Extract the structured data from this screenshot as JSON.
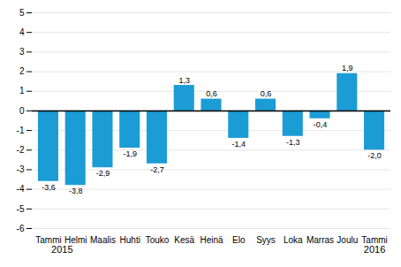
{
  "chart_data": {
    "type": "bar",
    "categories": [
      "Tammi",
      "Helmi",
      "Maalis",
      "Huhti",
      "Touko",
      "Kesä",
      "Heinä",
      "Elo",
      "Syys",
      "Loka",
      "Marras",
      "Joulu",
      "Tammi"
    ],
    "values": [
      -3.6,
      -3.8,
      -2.9,
      -1.9,
      -2.7,
      1.3,
      0.6,
      -1.4,
      0.6,
      -1.3,
      -0.4,
      1.9,
      -2.0
    ],
    "value_labels": [
      "-3,6",
      "-3,8",
      "-2,9",
      "-1,9",
      "-2,7",
      "1,3",
      "0,6",
      "-1,4",
      "0,6",
      "-1,3",
      "-0,4",
      "1,9",
      "-2,0"
    ],
    "color": "#1b9cd5",
    "ylim": [
      -6,
      5
    ],
    "yticks": [
      -6,
      -5,
      -4,
      -3,
      -2,
      -1,
      0,
      1,
      2,
      3,
      4,
      5
    ],
    "grid": true,
    "data_labels": true,
    "annotations": [
      {
        "text": "2015",
        "x": 0.5
      },
      {
        "text": "2016",
        "x": 12.0
      }
    ]
  }
}
